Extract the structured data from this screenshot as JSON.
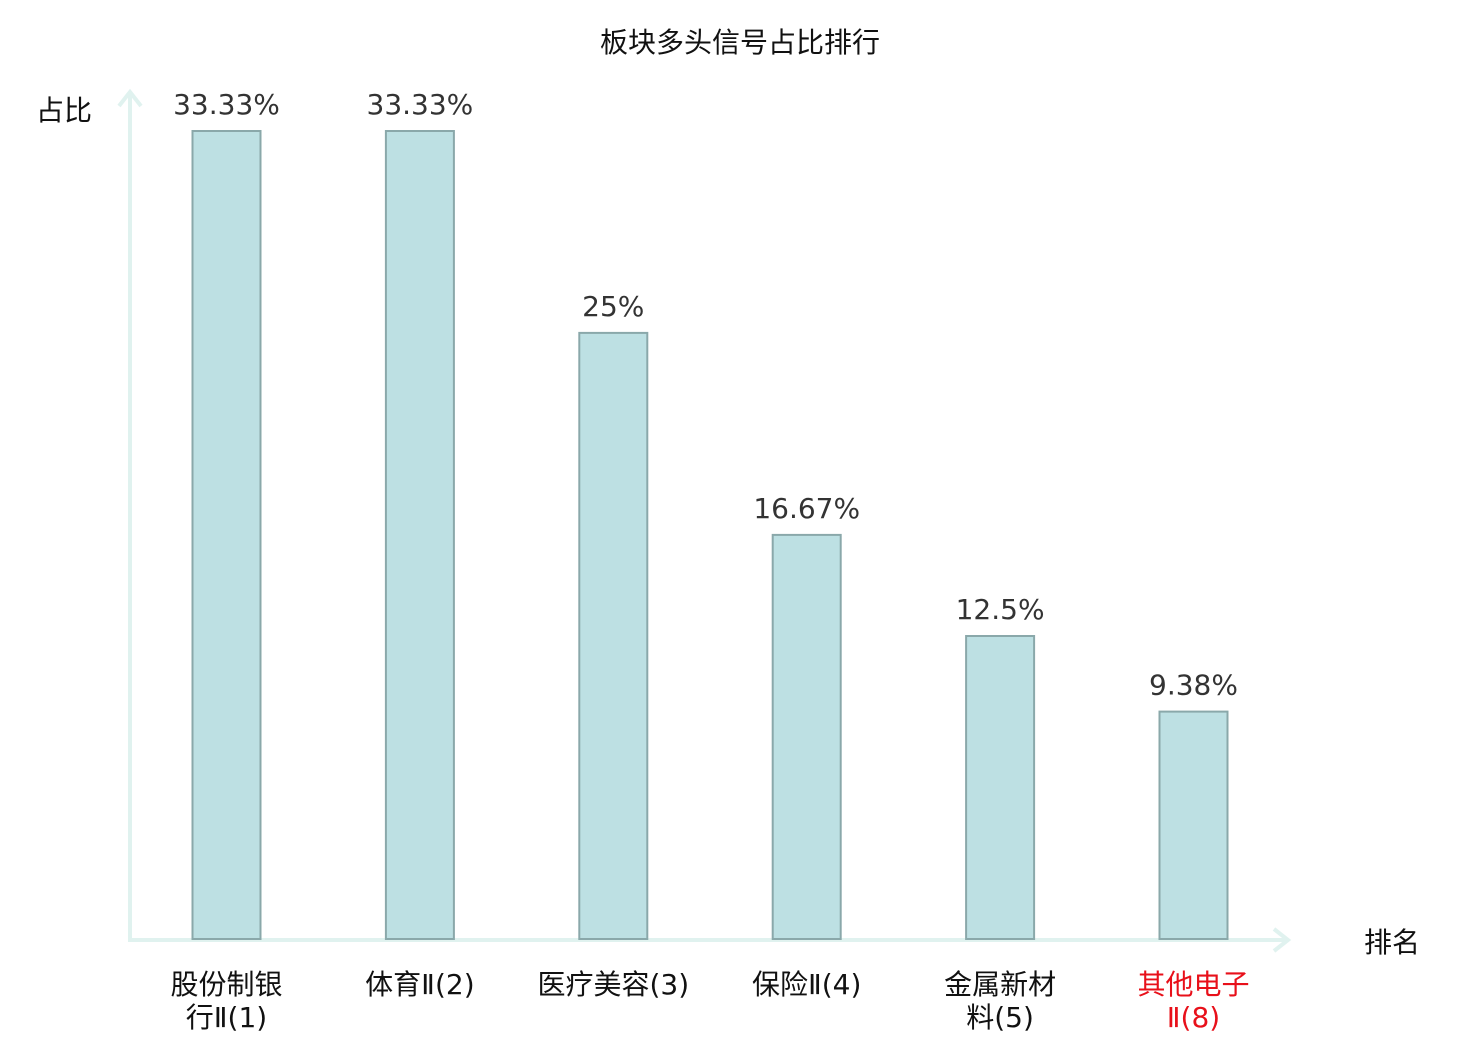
{
  "chart_data": {
    "type": "bar",
    "title": "板块多头信号占比排行",
    "xlabel": "排名",
    "ylabel": "占比",
    "ylim": [
      0,
      35
    ],
    "grid": false,
    "categories": [
      {
        "lines": [
          "股份制银",
          "行Ⅱ(1)"
        ],
        "highlight": false
      },
      {
        "lines": [
          "体育Ⅱ(2)"
        ],
        "highlight": false
      },
      {
        "lines": [
          "医疗美容(3)"
        ],
        "highlight": false
      },
      {
        "lines": [
          "保险Ⅱ(4)"
        ],
        "highlight": false
      },
      {
        "lines": [
          "金属新材",
          "料(5)"
        ],
        "highlight": false
      },
      {
        "lines": [
          "其他电子",
          "Ⅱ(8)"
        ],
        "highlight": true
      }
    ],
    "values": [
      33.33,
      33.33,
      25,
      16.67,
      12.5,
      9.38
    ],
    "value_labels": [
      "33.33%",
      "33.33%",
      "25%",
      "16.67%",
      "12.5%",
      "9.38%"
    ],
    "colors": {
      "bar_fill": "#bde0e3",
      "bar_stroke": "#8aa8aa",
      "axis": "#e0f2ef",
      "text": "#333333",
      "highlight": "#e8101a"
    }
  }
}
